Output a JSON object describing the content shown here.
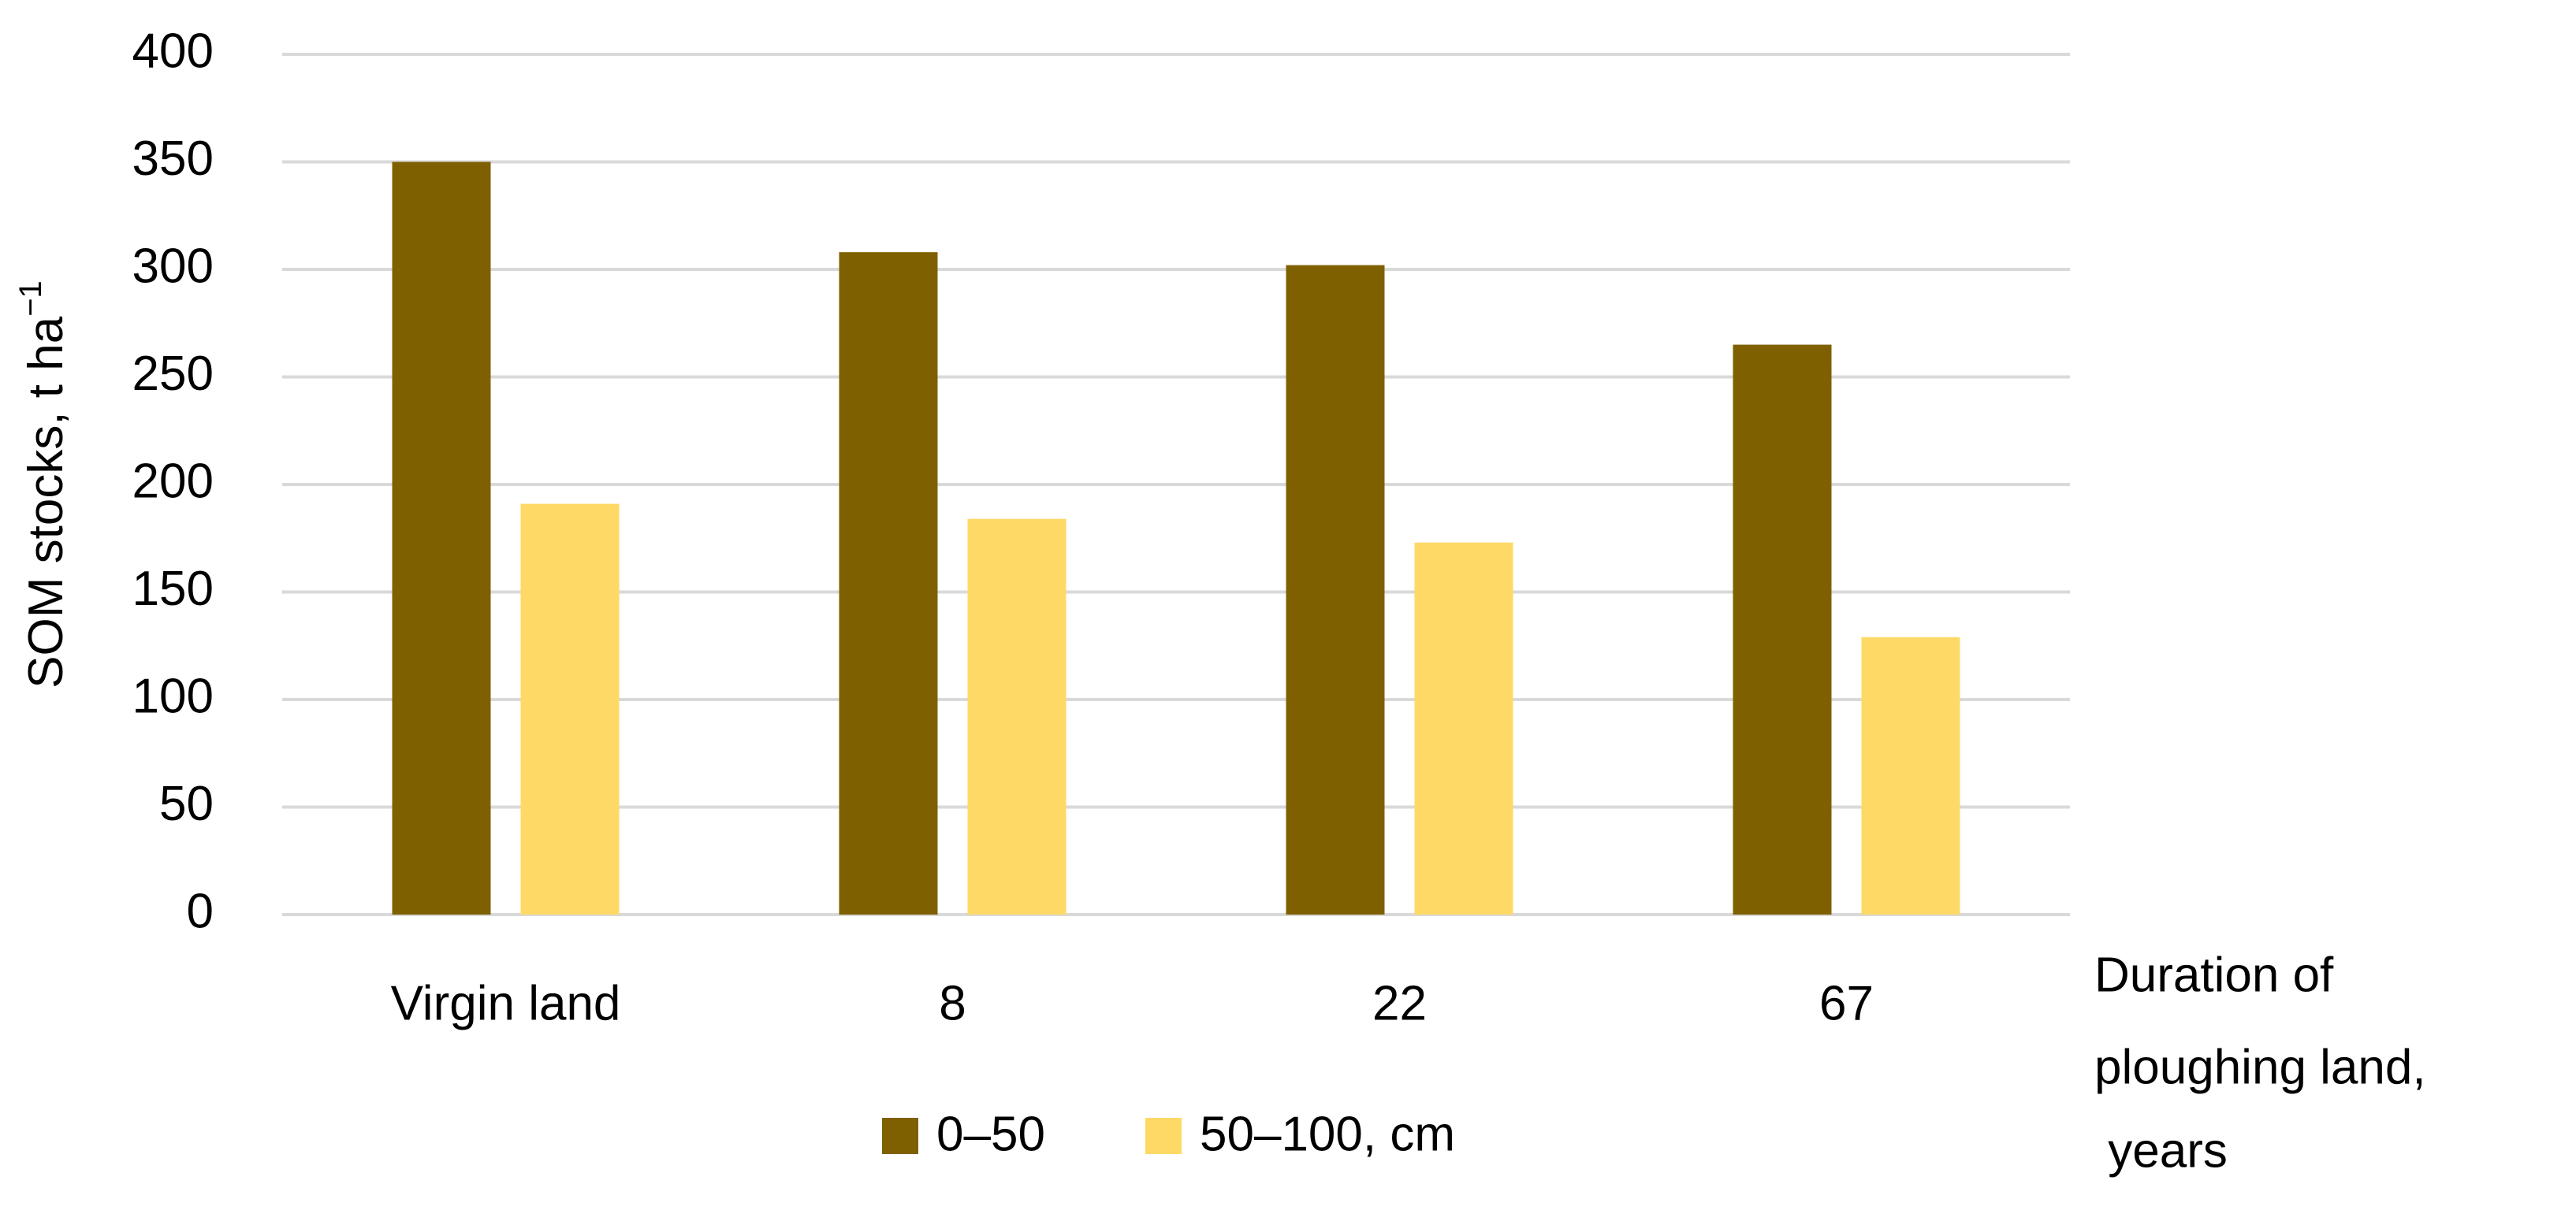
{
  "chart_data": {
    "type": "bar",
    "y_label": "SOM stocks, t ha",
    "y_label_superscript": "−1",
    "x_label_lines": [
      "Duration of",
      "ploughing land,",
      " years"
    ],
    "categories": [
      "Virgin land",
      "8",
      "22",
      "67"
    ],
    "series": [
      {
        "name": "0–50",
        "color": "#7f6000",
        "values": [
          350,
          308,
          302,
          265
        ]
      },
      {
        "name": "50–100, cm",
        "color": "#ffd966",
        "values": [
          191,
          184,
          173,
          129
        ]
      }
    ],
    "ylim": [
      0,
      400
    ],
    "yticks": [
      0,
      50,
      100,
      150,
      200,
      250,
      300,
      350,
      400
    ],
    "grid": true
  }
}
